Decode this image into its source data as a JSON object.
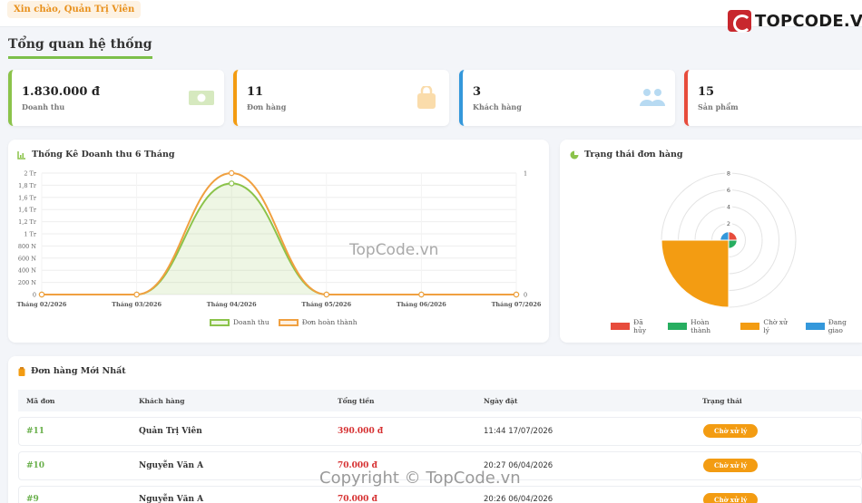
{
  "header": {
    "greeting": "Xin chào, Quản Trị Viên",
    "brand": "TOPCODE.VN"
  },
  "page_title": "Tổng quan hệ thống",
  "stats": [
    {
      "value": "1.830.000 đ",
      "label": "Doanh thu",
      "icon": "money-icon",
      "color": "#8bc34a"
    },
    {
      "value": "11",
      "label": "Đơn hàng",
      "icon": "bag-icon",
      "color": "#f39c12"
    },
    {
      "value": "3",
      "label": "Khách hàng",
      "icon": "users-icon",
      "color": "#3498db"
    },
    {
      "value": "15",
      "label": "Sản phẩm",
      "icon": "box-icon",
      "color": "#e74c3c"
    }
  ],
  "revenue_panel": {
    "title": "Thống Kê Doanh thu 6 Tháng",
    "legend": [
      "Doanh thu",
      "Đơn hoàn thành"
    ]
  },
  "status_panel": {
    "title": "Trạng thái đơn hàng",
    "legend": [
      "Đã hủy",
      "Hoàn thành",
      "Chờ xử lý",
      "Đang giao"
    ]
  },
  "chart_data": [
    {
      "type": "line",
      "title": "Thống Kê Doanh thu 6 Tháng",
      "categories": [
        "Tháng 02/2026",
        "Tháng 03/2026",
        "Tháng 04/2026",
        "Tháng 05/2026",
        "Tháng 06/2026",
        "Tháng 07/2026"
      ],
      "y_ticks": [
        "0",
        "200 N",
        "400 N",
        "600 N",
        "800 N",
        "1 Tr",
        "1,2 Tr",
        "1,4 Tr",
        "1,6 Tr",
        "1,8 Tr",
        "2 Tr"
      ],
      "y2_ticks": [
        "0",
        "1"
      ],
      "ylim": [
        0,
        2000000
      ],
      "y2lim": [
        0,
        1
      ],
      "series": [
        {
          "name": "Doanh thu",
          "axis": "left",
          "values": [
            0,
            0,
            1830000,
            0,
            0,
            0
          ],
          "color": "#8bc34a"
        },
        {
          "name": "Đơn hoàn thành",
          "axis": "right",
          "values": [
            0,
            0,
            1,
            0,
            0,
            0
          ],
          "color": "#f0a040"
        }
      ],
      "legend_position": "bottom"
    },
    {
      "type": "polar-area",
      "title": "Trạng thái đơn hàng",
      "categories": [
        "Đã hủy",
        "Hoàn thành",
        "Chờ xử lý",
        "Đang giao"
      ],
      "values": [
        1,
        1,
        8,
        1
      ],
      "colors": [
        "#e74c3c",
        "#27ae60",
        "#f39c12",
        "#3498db"
      ],
      "r_ticks": [
        "2",
        "4",
        "6",
        "8"
      ],
      "rlim": [
        0,
        8
      ],
      "legend_position": "bottom"
    }
  ],
  "orders_panel": {
    "title": "Đơn hàng Mới Nhất",
    "columns": [
      "Mã đơn",
      "Khách hàng",
      "Tổng tiền",
      "Ngày đặt",
      "Trạng thái"
    ],
    "rows": [
      {
        "id": "#11",
        "customer": "Quản Trị Viên",
        "total": "390.000 đ",
        "date": "11:44 17/07/2026",
        "status": "Chờ xử lý"
      },
      {
        "id": "#10",
        "customer": "Nguyễn Văn A",
        "total": "70.000 đ",
        "date": "20:27 06/04/2026",
        "status": "Chờ xử lý"
      },
      {
        "id": "#9",
        "customer": "Nguyễn Văn A",
        "total": "70.000 đ",
        "date": "20:26 06/04/2026",
        "status": "Chờ xử lý"
      }
    ]
  },
  "watermarks": {
    "center": "TopCode.vn",
    "bottom": "Copyright © TopCode.vn"
  }
}
